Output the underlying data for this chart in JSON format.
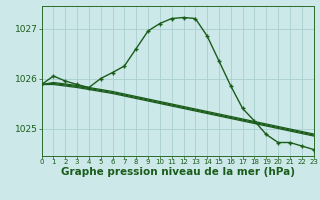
{
  "title": "Graphe pression niveau de la mer (hPa)",
  "background_color": "#cce8e8",
  "grid_color": "#aacfcf",
  "line_color": "#1a5c1a",
  "xlim": [
    0,
    23
  ],
  "ylim": [
    1024.45,
    1027.45
  ],
  "yticks": [
    1025,
    1026,
    1027
  ],
  "xticks": [
    0,
    1,
    2,
    3,
    4,
    5,
    6,
    7,
    8,
    9,
    10,
    11,
    12,
    13,
    14,
    15,
    16,
    17,
    18,
    19,
    20,
    21,
    22,
    23
  ],
  "main_series": [
    1025.88,
    1026.05,
    1025.95,
    1025.88,
    1025.82,
    1026.0,
    1026.12,
    1026.25,
    1026.6,
    1026.95,
    1027.1,
    1027.2,
    1027.22,
    1027.2,
    1026.85,
    1026.35,
    1025.85,
    1025.4,
    1025.15,
    1024.88,
    1024.72,
    1024.72,
    1024.65,
    1024.58
  ],
  "flat_series": [
    [
      1025.88,
      1025.88,
      1025.85,
      1025.82,
      1025.78,
      1025.74,
      1025.7,
      1025.65,
      1025.6,
      1025.55,
      1025.5,
      1025.45,
      1025.4,
      1025.35,
      1025.3,
      1025.25,
      1025.2,
      1025.15,
      1025.1,
      1025.05,
      1025.0,
      1024.95,
      1024.9,
      1024.85
    ],
    [
      1025.88,
      1025.9,
      1025.87,
      1025.84,
      1025.8,
      1025.76,
      1025.72,
      1025.67,
      1025.62,
      1025.57,
      1025.52,
      1025.47,
      1025.42,
      1025.37,
      1025.32,
      1025.27,
      1025.22,
      1025.17,
      1025.12,
      1025.07,
      1025.02,
      1024.97,
      1024.92,
      1024.87
    ],
    [
      1025.88,
      1025.92,
      1025.89,
      1025.86,
      1025.82,
      1025.78,
      1025.74,
      1025.69,
      1025.64,
      1025.59,
      1025.54,
      1025.49,
      1025.44,
      1025.39,
      1025.34,
      1025.29,
      1025.24,
      1025.19,
      1025.14,
      1025.09,
      1025.04,
      1024.99,
      1024.94,
      1024.89
    ]
  ],
  "axis_color": "#2d6b2d",
  "tick_color": "#1a5c1a",
  "label_fontsize": 6.5,
  "title_fontsize": 7.5
}
